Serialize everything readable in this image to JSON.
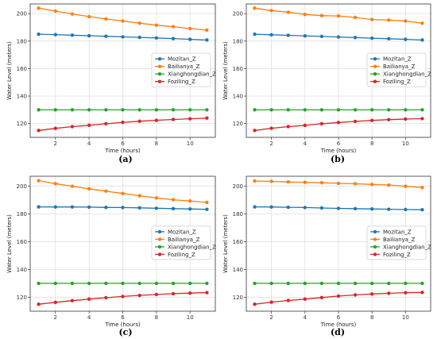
{
  "chart_data": [
    {
      "panel": "(a)",
      "type": "line",
      "xlabel": "Time (hours)",
      "ylabel": "Water Level (meters)",
      "xlim": [
        0.5,
        11.5
      ],
      "ylim": [
        110,
        207
      ],
      "x_ticks": [
        2,
        4,
        6,
        8,
        10
      ],
      "y_ticks": [
        120,
        140,
        160,
        180,
        200
      ],
      "grid": true,
      "legend_position": "center-right",
      "x": [
        1,
        2,
        3,
        4,
        5,
        6,
        7,
        8,
        9,
        10,
        11
      ],
      "series": [
        {
          "name": "Mozitan_Z",
          "color": "#1f77b4",
          "values": [
            185.0,
            184.7,
            184.3,
            183.9,
            183.5,
            183.1,
            182.7,
            182.3,
            181.8,
            181.3,
            180.8
          ]
        },
        {
          "name": "Bailianya_Z",
          "color": "#ff7f0e",
          "values": [
            204.0,
            201.8,
            199.7,
            197.8,
            196.1,
            194.6,
            193.0,
            191.6,
            190.5,
            189.1,
            188.0
          ]
        },
        {
          "name": "Xianghongdian_Z",
          "color": "#2ca02c",
          "values": [
            130.0,
            130.0,
            130.0,
            130.0,
            130.0,
            130.0,
            130.0,
            130.0,
            130.0,
            130.0,
            130.0
          ]
        },
        {
          "name": "Foziling_Z",
          "color": "#d62728",
          "values": [
            115.0,
            116.5,
            117.8,
            118.8,
            119.9,
            120.9,
            121.7,
            122.4,
            123.0,
            123.5,
            124.0
          ]
        }
      ]
    },
    {
      "panel": "(b)",
      "type": "line",
      "xlabel": "Time (hours)",
      "ylabel": "Water Level (meters)",
      "xlim": [
        0.5,
        11.5
      ],
      "ylim": [
        110,
        207
      ],
      "x_ticks": [
        2,
        4,
        6,
        8,
        10
      ],
      "y_ticks": [
        120,
        140,
        160,
        180,
        200
      ],
      "grid": true,
      "legend_position": "center-right",
      "x": [
        1,
        2,
        3,
        4,
        5,
        6,
        7,
        8,
        9,
        10,
        11
      ],
      "series": [
        {
          "name": "Mozitan_Z",
          "color": "#1f77b4",
          "values": [
            185.0,
            184.6,
            184.2,
            183.8,
            183.4,
            183.0,
            182.6,
            182.1,
            181.7,
            181.3,
            180.8
          ]
        },
        {
          "name": "Bailianya_Z",
          "color": "#ff7f0e",
          "values": [
            204.0,
            202.2,
            201.0,
            199.4,
            198.5,
            198.3,
            197.2,
            195.7,
            195.3,
            194.6,
            193.0
          ]
        },
        {
          "name": "Xianghongdian_Z",
          "color": "#2ca02c",
          "values": [
            130.0,
            130.0,
            130.0,
            130.0,
            130.0,
            130.0,
            130.0,
            130.0,
            130.0,
            130.0,
            130.0
          ]
        },
        {
          "name": "Foziling_Z",
          "color": "#d62728",
          "values": [
            115.0,
            116.6,
            117.8,
            118.7,
            119.9,
            120.8,
            121.6,
            122.3,
            122.9,
            123.3,
            123.6
          ]
        }
      ]
    },
    {
      "panel": "(c)",
      "type": "line",
      "xlabel": "Time (hours)",
      "ylabel": "Water Level (meters)",
      "xlim": [
        0.5,
        11.5
      ],
      "ylim": [
        110,
        207
      ],
      "x_ticks": [
        2,
        4,
        6,
        8,
        10
      ],
      "y_ticks": [
        120,
        140,
        160,
        180,
        200
      ],
      "grid": true,
      "legend_position": "center-right",
      "x": [
        1,
        2,
        3,
        4,
        5,
        6,
        7,
        8,
        9,
        10,
        11
      ],
      "series": [
        {
          "name": "Mozitan_Z",
          "color": "#1f77b4",
          "values": [
            185.0,
            184.9,
            184.9,
            184.8,
            184.6,
            184.5,
            184.3,
            184.0,
            183.7,
            183.5,
            183.2
          ]
        },
        {
          "name": "Bailianya_Z",
          "color": "#ff7f0e",
          "values": [
            203.8,
            201.7,
            199.8,
            198.0,
            196.3,
            194.6,
            193.0,
            191.4,
            190.1,
            189.2,
            188.2
          ]
        },
        {
          "name": "Xianghongdian_Z",
          "color": "#2ca02c",
          "values": [
            130.0,
            130.0,
            130.0,
            130.0,
            130.0,
            130.0,
            130.0,
            130.0,
            130.0,
            130.0,
            130.0
          ]
        },
        {
          "name": "Foziling_Z",
          "color": "#d62728",
          "values": [
            115.0,
            116.4,
            117.6,
            118.7,
            119.7,
            120.6,
            121.4,
            122.0,
            122.6,
            123.0,
            123.4
          ]
        }
      ]
    },
    {
      "panel": "(d)",
      "type": "line",
      "xlabel": "Time (hours)",
      "ylabel": "Water Level (meters)",
      "xlim": [
        0.5,
        11.5
      ],
      "ylim": [
        110,
        207
      ],
      "x_ticks": [
        2,
        4,
        6,
        8,
        10
      ],
      "y_ticks": [
        120,
        140,
        160,
        180,
        200
      ],
      "grid": true,
      "legend_position": "center-right",
      "x": [
        1,
        2,
        3,
        4,
        5,
        6,
        7,
        8,
        9,
        10,
        11
      ],
      "series": [
        {
          "name": "Mozitan_Z",
          "color": "#1f77b4",
          "values": [
            185.0,
            184.9,
            184.7,
            184.5,
            184.2,
            183.9,
            183.7,
            183.5,
            183.3,
            183.1,
            182.9
          ]
        },
        {
          "name": "Bailianya_Z",
          "color": "#ff7f0e",
          "values": [
            203.6,
            203.3,
            202.9,
            202.6,
            202.3,
            201.9,
            201.6,
            201.1,
            200.7,
            199.8,
            198.9
          ]
        },
        {
          "name": "Xianghongdian_Z",
          "color": "#2ca02c",
          "values": [
            130.0,
            130.0,
            130.0,
            130.0,
            130.0,
            130.0,
            130.0,
            130.0,
            130.0,
            130.0,
            130.0
          ]
        },
        {
          "name": "Foziling_Z",
          "color": "#d62728",
          "values": [
            115.0,
            116.5,
            117.7,
            118.7,
            119.8,
            120.9,
            121.7,
            122.4,
            122.9,
            123.3,
            123.5
          ]
        }
      ]
    }
  ]
}
